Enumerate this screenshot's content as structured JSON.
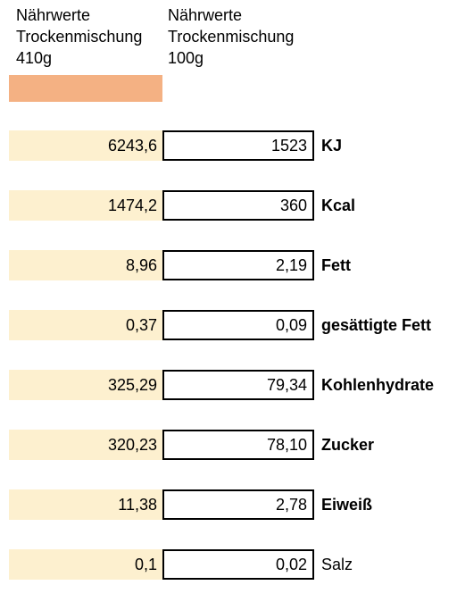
{
  "header": {
    "col1": {
      "line1": "Nährwerte",
      "line2": "Trockenmischung",
      "line3": "410g"
    },
    "col2": {
      "line1": "Nährwerte",
      "line2": "Trockenmischung",
      "line3": "100g"
    }
  },
  "colors": {
    "swatch": "#f4b183",
    "cell_410_bg": "#fdf0cf"
  },
  "rows": [
    {
      "value_410g": "6243,6",
      "value_100g": "1523",
      "label": "KJ",
      "bold": true
    },
    {
      "value_410g": "1474,2",
      "value_100g": "360",
      "label": "Kcal",
      "bold": true
    },
    {
      "value_410g": "8,96",
      "value_100g": "2,19",
      "label": "Fett",
      "bold": true
    },
    {
      "value_410g": "0,37",
      "value_100g": "0,09",
      "label": "gesättigte Fett",
      "bold": true
    },
    {
      "value_410g": "325,29",
      "value_100g": "79,34",
      "label": "Kohlenhydrate",
      "bold": true
    },
    {
      "value_410g": "320,23",
      "value_100g": "78,10",
      "label": "Zucker",
      "bold": true
    },
    {
      "value_410g": "11,38",
      "value_100g": "2,78",
      "label": "Eiweiß",
      "bold": true
    },
    {
      "value_410g": "0,1",
      "value_100g": "0,02",
      "label": "Salz",
      "bold": false
    }
  ]
}
